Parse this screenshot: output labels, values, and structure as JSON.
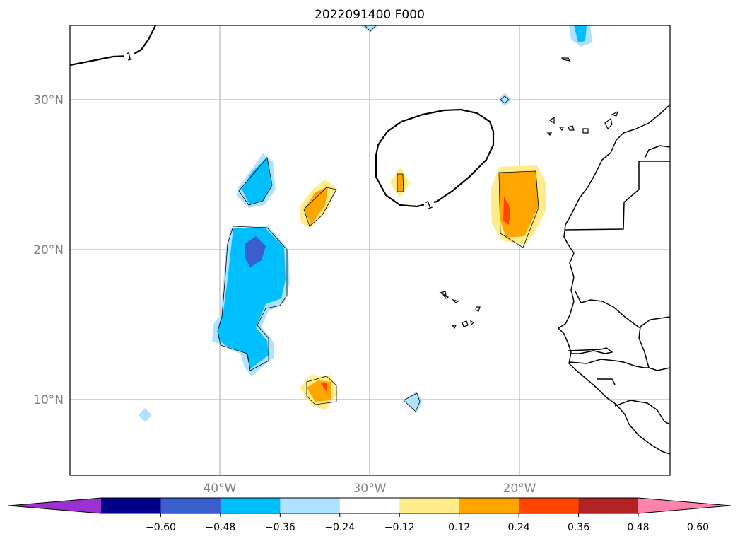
{
  "title": "2022091400 F000",
  "map": {
    "lat_ticks": [
      {
        "value": 30,
        "label": "30°N"
      },
      {
        "value": 20,
        "label": "20°N"
      },
      {
        "value": 10,
        "label": "10°N"
      }
    ],
    "lon_ticks": [
      {
        "value": -40,
        "label": "40°W"
      },
      {
        "value": -30,
        "label": "30°W"
      },
      {
        "value": -20,
        "label": "20°W"
      }
    ],
    "contour_label": "1"
  },
  "colorbar": {
    "ticks": [
      "−0.60",
      "−0.48",
      "−0.36",
      "−0.24",
      "−0.12",
      "0.12",
      "0.24",
      "0.36",
      "0.48",
      "0.60"
    ],
    "colors": [
      "#9b30d0",
      "#00008b",
      "#3a5fcd",
      "#00bfff",
      "#b0e2ff",
      "#ffffff",
      "#ffec8b",
      "#ffa500",
      "#ff4500",
      "#b22222",
      "#ff82ab"
    ]
  }
}
